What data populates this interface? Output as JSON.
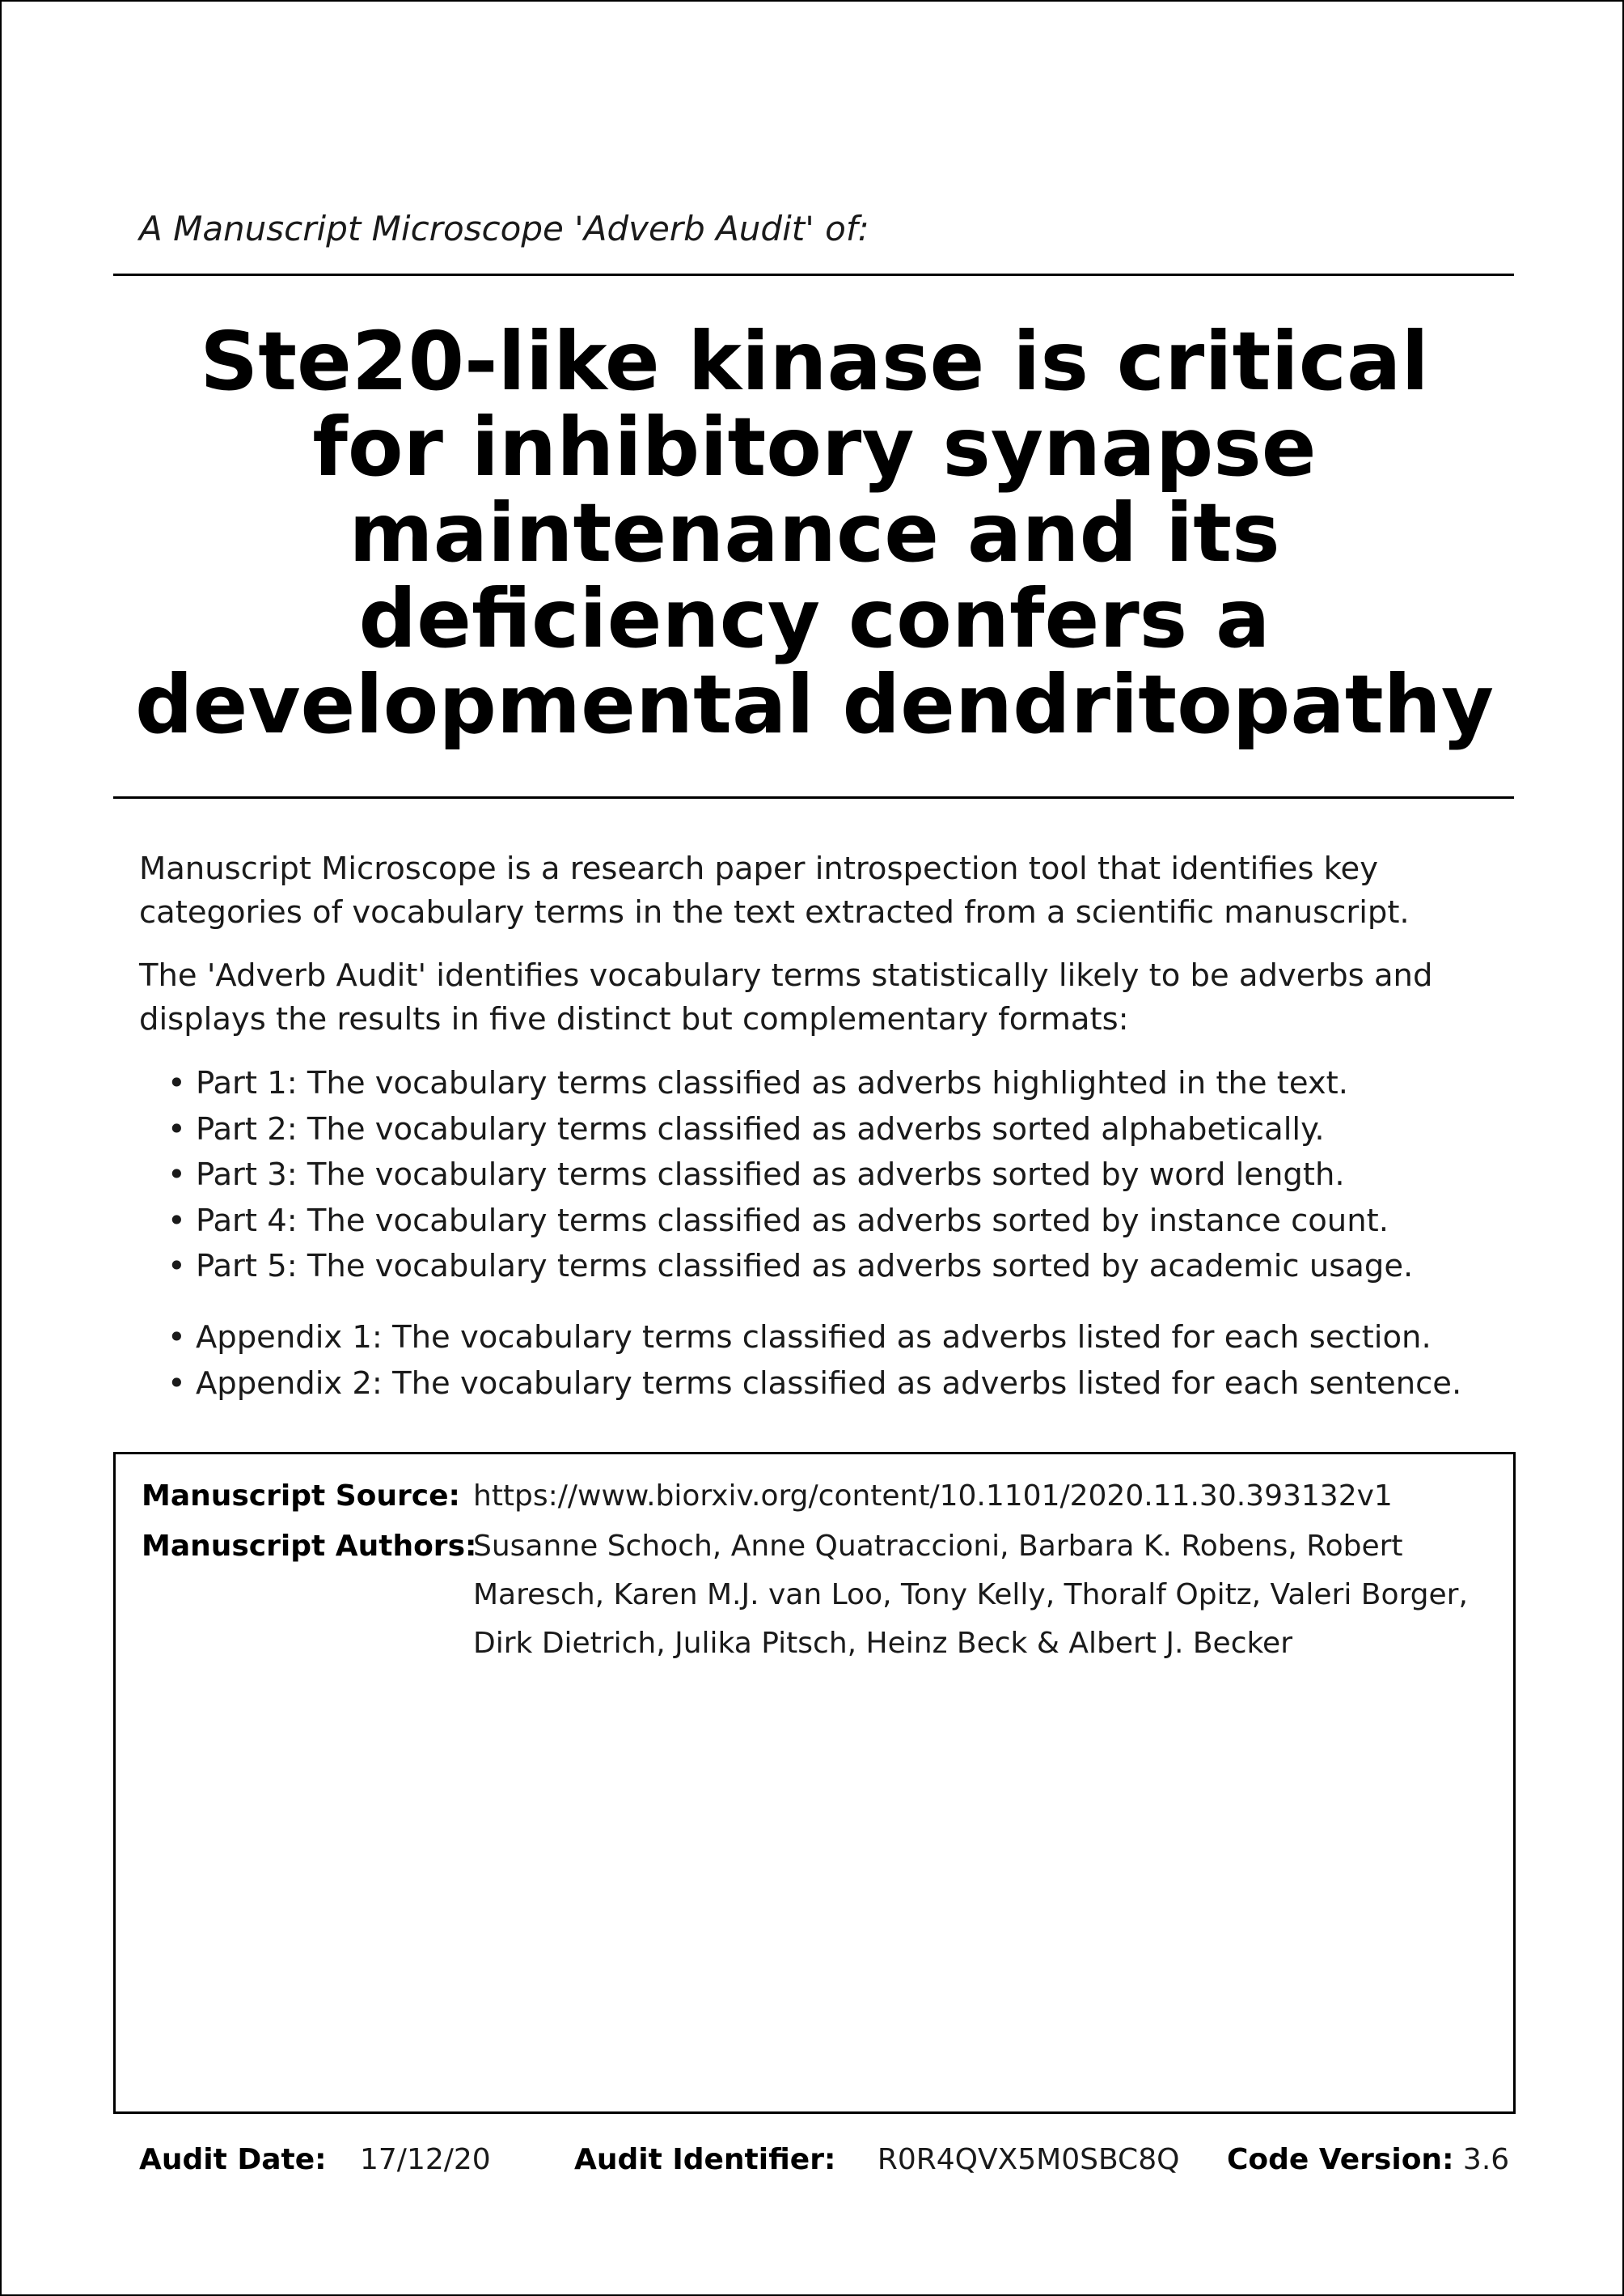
{
  "header": {
    "subtitle": "A Manuscript Microscope 'Adverb Audit' of:",
    "title": "Ste20-like kinase is critical for inhibitory synapse maintenance and its deficiency confers a developmental dendritopathy"
  },
  "intro": {
    "paragraph1": "Manuscript Microscope is a research paper introspection tool that identifies key categories of vocabulary terms in the text extracted from a scientific manuscript.",
    "paragraph2": "The 'Adverb Audit' identifies vocabulary terms statistically likely to be adverbs and displays the results in five distinct but complementary formats:"
  },
  "parts": [
    "Part 1: The vocabulary terms classified as adverbs highlighted in the text.",
    "Part 2: The vocabulary terms classified as adverbs sorted alphabetically.",
    "Part 3: The vocabulary terms classified as adverbs sorted by word length.",
    "Part 4: The vocabulary terms classified as adverbs sorted by instance count.",
    "Part 5: The vocabulary terms classified as adverbs sorted by academic usage."
  ],
  "appendices": [
    "Appendix 1: The vocabulary terms classified as adverbs listed for each section.",
    "Appendix 2: The vocabulary terms classified as adverbs listed for each sentence."
  ],
  "manuscript": {
    "source_label": "Manuscript Source:",
    "source_value": "https://www.biorxiv.org/content/10.1101/2020.11.30.393132v1",
    "authors_label": "Manuscript Authors:",
    "authors_value": "Susanne Schoch, Anne Quatraccioni, Barbara K. Robens, Robert Maresch, Karen M.J. van Loo, Tony Kelly, Thoralf Opitz, Valeri Borger, Dirk Dietrich, Julika Pitsch, Heinz Beck & Albert J. Becker"
  },
  "footer": {
    "audit_date_label": "Audit Date:",
    "audit_date_value": "17/12/20",
    "audit_id_label": "Audit Identifier:",
    "audit_id_value": "R0R4QVX5M0SBC8Q",
    "code_version_label": "Code Version:",
    "code_version_value": "3.6"
  }
}
